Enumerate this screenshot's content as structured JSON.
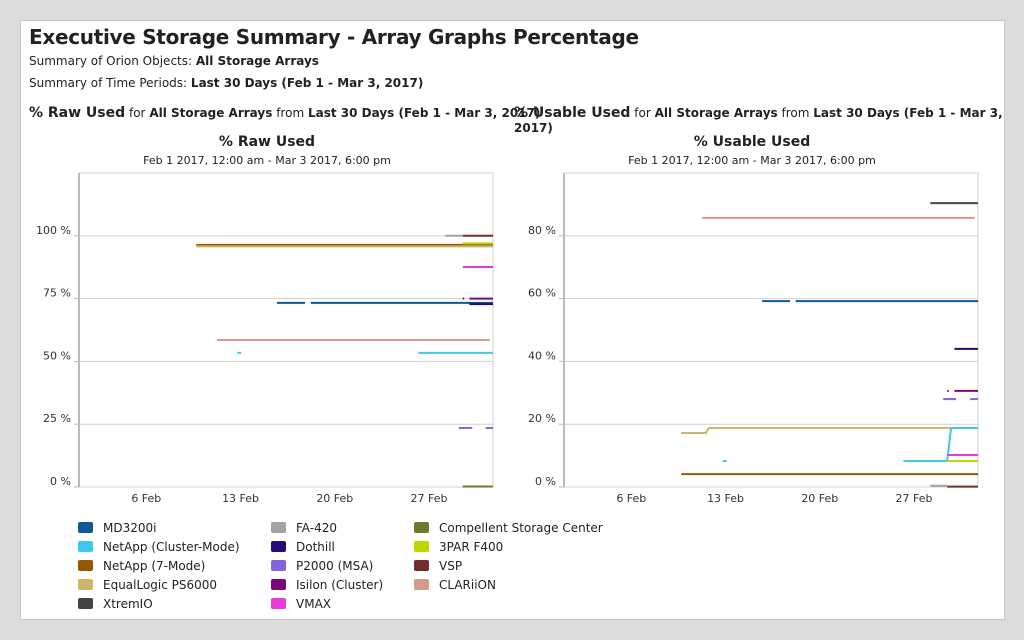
{
  "header": {
    "title": "Executive Storage Summary - Array Graphs Percentage",
    "objects_label": "Summary of Orion Objects:",
    "objects_value": "All Storage Arrays",
    "periods_label": "Summary of Time Periods:",
    "periods_value": "Last 30 Days (Feb 1 - Mar 3, 2017)"
  },
  "sections": [
    {
      "metric": "% Raw Used",
      "for": "for",
      "objects": "All Storage Arrays",
      "from": "from",
      "period": "Last 30 Days (Feb 1 - Mar 3, 2017)"
    },
    {
      "metric": "% Usable Used",
      "for": "for",
      "objects": "All Storage Arrays",
      "from": "from",
      "period": "Last 30 Days (Feb 1 - Mar 3, 2017)"
    }
  ],
  "legend": [
    {
      "name": "MD3200i",
      "color": "#0f5a9a"
    },
    {
      "name": "NetApp (Cluster-Mode)",
      "color": "#3ec8ee"
    },
    {
      "name": "NetApp (7-Mode)",
      "color": "#955a00"
    },
    {
      "name": "EqualLogic PS6000",
      "color": "#cdb665"
    },
    {
      "name": "XtremIO",
      "color": "#444444"
    },
    {
      "name": "FA-420",
      "color": "#a3a3a3"
    },
    {
      "name": "Dothill",
      "color": "#250a78"
    },
    {
      "name": "P2000 (MSA)",
      "color": "#8560e0"
    },
    {
      "name": "Isilon (Cluster)",
      "color": "#7a0878"
    },
    {
      "name": "VMAX",
      "color": "#ea3ad9"
    },
    {
      "name": "Compellent Storage Center",
      "color": "#6b7a2c"
    },
    {
      "name": "3PAR F400",
      "color": "#bcd800"
    },
    {
      "name": "VSP",
      "color": "#722e2e"
    },
    {
      "name": "CLARiiON",
      "color": "#d39b88"
    }
  ],
  "chart_data": [
    {
      "type": "line",
      "title": "% Raw Used",
      "subtitle": "Feb 1 2017, 12:00 am - Mar 3 2017, 6:00 pm",
      "xlim": [
        "2017-02-01T00:00",
        "2017-03-03T18:00"
      ],
      "xticks": [
        {
          "label": "6 Feb",
          "date": "2017-02-06T00:00"
        },
        {
          "label": "13 Feb",
          "date": "2017-02-13T00:00"
        },
        {
          "label": "20 Feb",
          "date": "2017-02-20T00:00"
        },
        {
          "label": "27 Feb",
          "date": "2017-02-27T00:00"
        }
      ],
      "ylim": [
        0,
        125
      ],
      "yticks": [
        {
          "label": "0 %",
          "value": 0
        },
        {
          "label": "25 %",
          "value": 25
        },
        {
          "label": "50 %",
          "value": 50
        },
        {
          "label": "75 %",
          "value": 75
        },
        {
          "label": "100 %",
          "value": 100
        }
      ],
      "grid": true,
      "series": [
        {
          "name": "NetApp (7-Mode)",
          "segments": [
            [
              "2017-02-09T17:00",
              "2017-03-03T18:00",
              96.4
            ]
          ]
        },
        {
          "name": "EqualLogic PS6000",
          "segments": [
            [
              "2017-02-09T17:00",
              "2017-03-03T18:00",
              95.8
            ]
          ]
        },
        {
          "name": "MD3200i",
          "segments": [
            [
              "2017-02-15T17:00",
              "2017-02-17T19:00",
              73.3
            ],
            [
              "2017-02-18T05:00",
              "2017-03-03T18:00",
              73.3
            ]
          ]
        },
        {
          "name": "Dothill",
          "segments": [
            [
              "2017-03-02T00:00",
              "2017-03-03T18:00",
              72.8
            ]
          ]
        },
        {
          "name": "Isilon (Cluster)",
          "segments": [
            [
              "2017-03-01T12:00",
              "2017-03-01T14:00",
              75
            ],
            [
              "2017-03-02T00:00",
              "2017-03-03T18:00",
              75
            ]
          ]
        },
        {
          "name": "VSP",
          "segments": [
            [
              "2017-03-01T12:00",
              "2017-03-03T18:00",
              100
            ]
          ]
        },
        {
          "name": "FA-420",
          "segments": [
            [
              "2017-02-28T05:00",
              "2017-03-01T12:00",
              100
            ]
          ]
        },
        {
          "name": "3PAR F400",
          "segments": [
            [
              "2017-03-01T12:00",
              "2017-03-03T18:00",
              97
            ]
          ]
        },
        {
          "name": "VMAX",
          "segments": [
            [
              "2017-03-01T12:00",
              "2017-03-03T18:00",
              87.6
            ]
          ]
        },
        {
          "name": "CLARiiON",
          "segments": [
            [
              "2017-02-11T06:00",
              "2017-03-03T12:00",
              58.5
            ]
          ]
        },
        {
          "name": "NetApp (Cluster-Mode)",
          "segments": [
            [
              "2017-02-12T18:00",
              "2017-02-13T01:00",
              53.4
            ],
            [
              "2017-02-26T05:00",
              "2017-03-03T18:00",
              53.4
            ]
          ]
        },
        {
          "name": "P2000 (MSA)",
          "segments": [
            [
              "2017-03-01T05:00",
              "2017-03-02T05:00",
              23.5
            ],
            [
              "2017-03-03T05:00",
              "2017-03-03T18:00",
              23.5
            ]
          ]
        },
        {
          "name": "Compellent Storage Center",
          "segments": [
            [
              "2017-03-01T12:00",
              "2017-03-03T18:00",
              0.2
            ]
          ]
        }
      ]
    },
    {
      "type": "line",
      "title": "% Usable Used",
      "subtitle": "Feb 1 2017, 12:00 am - Mar 3 2017, 6:00 pm",
      "xlim": [
        "2017-02-01T00:00",
        "2017-03-03T18:00"
      ],
      "xticks": [
        {
          "label": "6 Feb",
          "date": "2017-02-06T00:00"
        },
        {
          "label": "13 Feb",
          "date": "2017-02-13T00:00"
        },
        {
          "label": "20 Feb",
          "date": "2017-02-20T00:00"
        },
        {
          "label": "27 Feb",
          "date": "2017-02-27T00:00"
        }
      ],
      "ylim": [
        0,
        100
      ],
      "yticks": [
        {
          "label": "0 %",
          "value": 0
        },
        {
          "label": "20 %",
          "value": 20
        },
        {
          "label": "40 %",
          "value": 40
        },
        {
          "label": "60 %",
          "value": 60
        },
        {
          "label": "80 %",
          "value": 80
        }
      ],
      "grid": true,
      "series": [
        {
          "name": "XtremIO",
          "segments": [
            [
              "2017-02-28T05:00",
              "2017-03-03T18:00",
              90.4
            ]
          ]
        },
        {
          "name": "CLARiiON",
          "segments": [
            [
              "2017-02-11T06:00",
              "2017-03-03T12:00",
              85.7
            ]
          ]
        },
        {
          "name": "MD3200i",
          "segments": [
            [
              "2017-02-15T17:00",
              "2017-02-17T19:00",
              59.2
            ],
            [
              "2017-02-18T05:00",
              "2017-03-03T18:00",
              59.2
            ]
          ]
        },
        {
          "name": "Dothill",
          "segments": [
            [
              "2017-03-02T00:00",
              "2017-03-03T18:00",
              44
            ]
          ]
        },
        {
          "name": "Isilon (Cluster)",
          "segments": [
            [
              "2017-03-01T11:00",
              "2017-03-01T13:00",
              30.6
            ],
            [
              "2017-03-02T00:00",
              "2017-03-03T18:00",
              30.6
            ]
          ]
        },
        {
          "name": "P2000 (MSA)",
          "segments": [
            [
              "2017-03-01T04:00",
              "2017-03-02T03:00",
              28
            ],
            [
              "2017-03-03T04:00",
              "2017-03-03T18:00",
              28
            ]
          ]
        },
        {
          "name": "EqualLogic PS6000",
          "points": [
            [
              "2017-02-09T17:00",
              17.2
            ],
            [
              "2017-02-11T13:00",
              17.2
            ],
            [
              "2017-02-11T18:00",
              18.8
            ],
            [
              "2017-03-03T18:00",
              18.8
            ]
          ]
        },
        {
          "name": "NetApp (Cluster-Mode)",
          "segments": [
            [
              "2017-02-12T19:00",
              "2017-02-13T02:00",
              8.3
            ]
          ],
          "points": [
            [
              "2017-02-26T05:00",
              8.3
            ],
            [
              "2017-03-01T11:00",
              8.3
            ],
            [
              "2017-03-01T18:00",
              18.8
            ],
            [
              "2017-03-03T18:00",
              18.8
            ]
          ]
        },
        {
          "name": "VMAX",
          "segments": [
            [
              "2017-03-01T11:00",
              "2017-03-03T18:00",
              10.2
            ]
          ]
        },
        {
          "name": "3PAR F400",
          "segments": [
            [
              "2017-03-01T11:00",
              "2017-03-03T18:00",
              8.3
            ]
          ]
        },
        {
          "name": "NetApp (7-Mode)",
          "segments": [
            [
              "2017-02-09T17:00",
              "2017-03-03T18:00",
              4.1
            ]
          ]
        },
        {
          "name": "FA-420",
          "segments": [
            [
              "2017-02-28T05:00",
              "2017-03-01T11:00",
              0.4
            ]
          ]
        },
        {
          "name": "VSP",
          "segments": [
            [
              "2017-03-01T11:00",
              "2017-03-03T18:00",
              0.1
            ]
          ]
        }
      ]
    }
  ]
}
